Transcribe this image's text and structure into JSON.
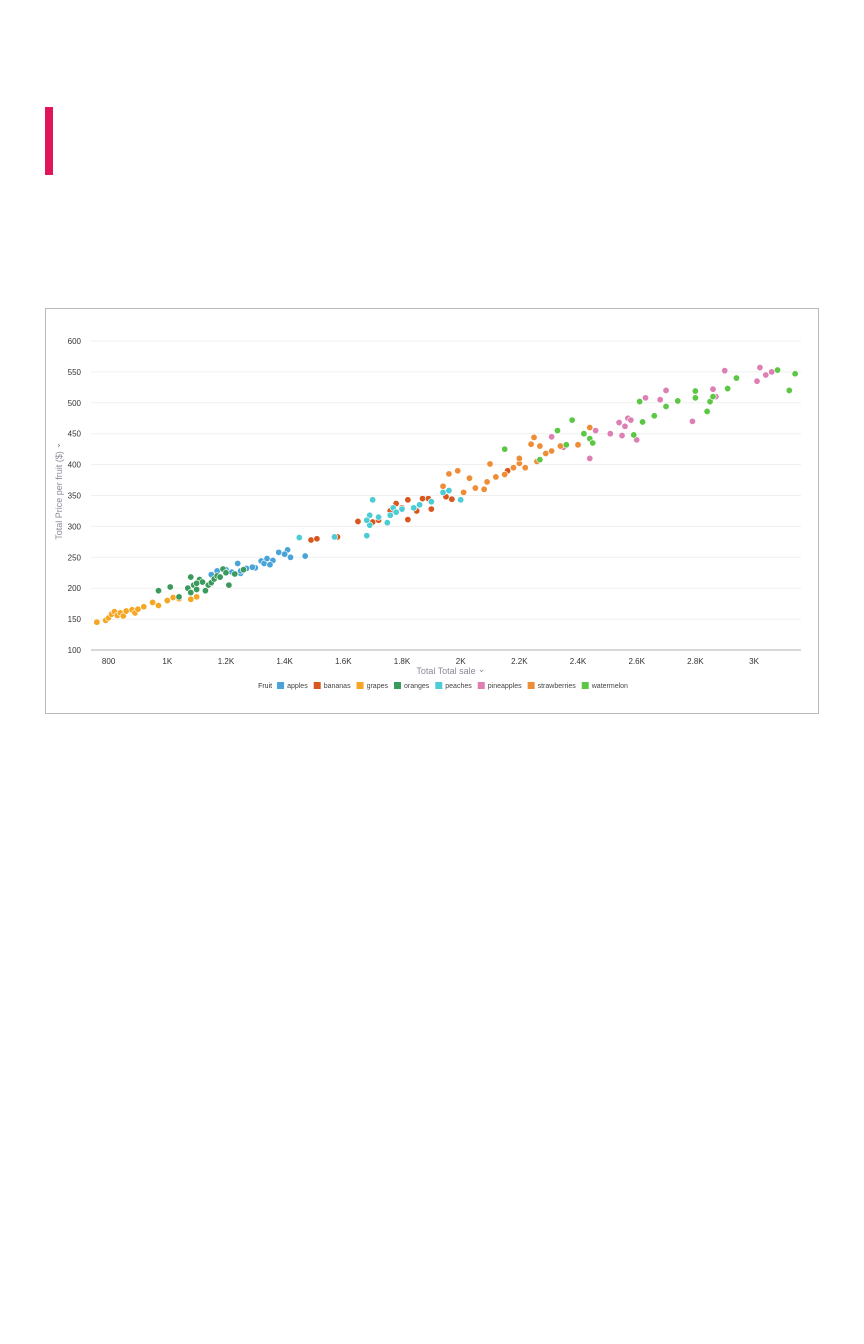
{
  "colors": {
    "accent": "#e0165b"
  },
  "chart_data": {
    "type": "scatter",
    "xlabel": "Total Total sale",
    "ylabel": "Total Price per fruit ($)",
    "xlim": [
      740,
      3160
    ],
    "ylim": [
      100,
      600
    ],
    "x_ticks": [
      {
        "value": 800,
        "label": "800"
      },
      {
        "value": 1000,
        "label": "1K"
      },
      {
        "value": 1200,
        "label": "1.2K"
      },
      {
        "value": 1400,
        "label": "1.4K"
      },
      {
        "value": 1600,
        "label": "1.6K"
      },
      {
        "value": 1800,
        "label": "1.8K"
      },
      {
        "value": 2000,
        "label": "2K"
      },
      {
        "value": 2200,
        "label": "2.2K"
      },
      {
        "value": 2400,
        "label": "2.4K"
      },
      {
        "value": 2600,
        "label": "2.6K"
      },
      {
        "value": 2800,
        "label": "2.8K"
      },
      {
        "value": 3000,
        "label": "3K"
      }
    ],
    "y_ticks": [
      {
        "value": 100,
        "label": "100"
      },
      {
        "value": 150,
        "label": "150"
      },
      {
        "value": 200,
        "label": "200"
      },
      {
        "value": 250,
        "label": "250"
      },
      {
        "value": 300,
        "label": "300"
      },
      {
        "value": 350,
        "label": "350"
      },
      {
        "value": 400,
        "label": "400"
      },
      {
        "value": 450,
        "label": "450"
      },
      {
        "value": 500,
        "label": "500"
      },
      {
        "value": 550,
        "label": "550"
      },
      {
        "value": 600,
        "label": "600"
      }
    ],
    "grid": true,
    "legend": {
      "title": "Fruit",
      "placement": "bottom-center"
    },
    "series": [
      {
        "name": "apples",
        "color": "#4aa3d8",
        "points": [
          [
            1150,
            222
          ],
          [
            1170,
            228
          ],
          [
            1200,
            230
          ],
          [
            1220,
            226
          ],
          [
            1240,
            240
          ],
          [
            1250,
            224
          ],
          [
            1270,
            232
          ],
          [
            1300,
            233
          ],
          [
            1320,
            244
          ],
          [
            1330,
            240
          ],
          [
            1340,
            248
          ],
          [
            1360,
            245
          ],
          [
            1380,
            258
          ],
          [
            1410,
            262
          ],
          [
            1420,
            250
          ],
          [
            1470,
            252
          ],
          [
            1250,
            228
          ],
          [
            1350,
            238
          ],
          [
            1290,
            234
          ],
          [
            1400,
            255
          ]
        ]
      },
      {
        "name": "bananas",
        "color": "#d9571e",
        "points": [
          [
            1490,
            278
          ],
          [
            1510,
            280
          ],
          [
            1580,
            283
          ],
          [
            1650,
            308
          ],
          [
            1700,
            307
          ],
          [
            1720,
            310
          ],
          [
            1780,
            337
          ],
          [
            1800,
            330
          ],
          [
            1820,
            343
          ],
          [
            1820,
            311
          ],
          [
            1850,
            325
          ],
          [
            1870,
            345
          ],
          [
            1890,
            345
          ],
          [
            1900,
            328
          ],
          [
            1950,
            348
          ],
          [
            1970,
            344
          ],
          [
            2160,
            390
          ],
          [
            1760,
            325
          ]
        ]
      },
      {
        "name": "grapes",
        "color": "#f5a623",
        "points": [
          [
            760,
            145
          ],
          [
            790,
            148
          ],
          [
            800,
            152
          ],
          [
            810,
            158
          ],
          [
            820,
            162
          ],
          [
            830,
            156
          ],
          [
            840,
            160
          ],
          [
            850,
            155
          ],
          [
            860,
            163
          ],
          [
            880,
            165
          ],
          [
            890,
            160
          ],
          [
            900,
            166
          ],
          [
            920,
            170
          ],
          [
            950,
            177
          ],
          [
            970,
            172
          ],
          [
            1000,
            180
          ],
          [
            1020,
            185
          ],
          [
            1040,
            183
          ],
          [
            1080,
            182
          ],
          [
            1100,
            186
          ]
        ]
      },
      {
        "name": "oranges",
        "color": "#3a9a5b",
        "points": [
          [
            970,
            196
          ],
          [
            1010,
            202
          ],
          [
            1040,
            186
          ],
          [
            1070,
            200
          ],
          [
            1080,
            218
          ],
          [
            1090,
            205
          ],
          [
            1100,
            198
          ],
          [
            1110,
            214
          ],
          [
            1120,
            210
          ],
          [
            1140,
            205
          ],
          [
            1150,
            209
          ],
          [
            1160,
            215
          ],
          [
            1170,
            220
          ],
          [
            1180,
            218
          ],
          [
            1190,
            231
          ],
          [
            1200,
            225
          ],
          [
            1210,
            205
          ],
          [
            1230,
            223
          ],
          [
            1260,
            230
          ],
          [
            1080,
            193
          ],
          [
            1100,
            208
          ],
          [
            1130,
            196
          ]
        ]
      },
      {
        "name": "peaches",
        "color": "#4ccdd6",
        "points": [
          [
            1450,
            282
          ],
          [
            1570,
            283
          ],
          [
            1680,
            285
          ],
          [
            1690,
            302
          ],
          [
            1690,
            318
          ],
          [
            1700,
            343
          ],
          [
            1720,
            315
          ],
          [
            1750,
            306
          ],
          [
            1760,
            318
          ],
          [
            1770,
            330
          ],
          [
            1800,
            328
          ],
          [
            1840,
            330
          ],
          [
            1860,
            335
          ],
          [
            1900,
            340
          ],
          [
            1940,
            355
          ],
          [
            1960,
            358
          ],
          [
            2000,
            343
          ],
          [
            1680,
            310
          ],
          [
            1780,
            323
          ]
        ]
      },
      {
        "name": "pineapples",
        "color": "#de7fb3",
        "points": [
          [
            2310,
            445
          ],
          [
            2350,
            428
          ],
          [
            2440,
            410
          ],
          [
            2460,
            455
          ],
          [
            2510,
            450
          ],
          [
            2550,
            447
          ],
          [
            2560,
            462
          ],
          [
            2570,
            475
          ],
          [
            2600,
            440
          ],
          [
            2630,
            508
          ],
          [
            2680,
            505
          ],
          [
            2700,
            520
          ],
          [
            2790,
            470
          ],
          [
            2860,
            522
          ],
          [
            2870,
            510
          ],
          [
            2900,
            552
          ],
          [
            3010,
            535
          ],
          [
            3020,
            557
          ],
          [
            3040,
            545
          ],
          [
            3060,
            550
          ],
          [
            2540,
            468
          ],
          [
            2580,
            472
          ]
        ]
      },
      {
        "name": "strawberries",
        "color": "#ef8d37",
        "points": [
          [
            1940,
            365
          ],
          [
            1960,
            385
          ],
          [
            1990,
            390
          ],
          [
            2010,
            355
          ],
          [
            2030,
            378
          ],
          [
            2050,
            362
          ],
          [
            2080,
            360
          ],
          [
            2090,
            372
          ],
          [
            2100,
            401
          ],
          [
            2120,
            380
          ],
          [
            2150,
            384
          ],
          [
            2180,
            395
          ],
          [
            2200,
            402
          ],
          [
            2220,
            395
          ],
          [
            2240,
            433
          ],
          [
            2250,
            444
          ],
          [
            2270,
            430
          ],
          [
            2290,
            418
          ],
          [
            2310,
            422
          ],
          [
            2340,
            430
          ],
          [
            2400,
            432
          ],
          [
            2440,
            460
          ],
          [
            2200,
            410
          ],
          [
            2260,
            405
          ]
        ]
      },
      {
        "name": "watermelon",
        "color": "#5cc744",
        "points": [
          [
            2150,
            425
          ],
          [
            2270,
            408
          ],
          [
            2330,
            455
          ],
          [
            2360,
            432
          ],
          [
            2380,
            472
          ],
          [
            2420,
            450
          ],
          [
            2440,
            442
          ],
          [
            2450,
            435
          ],
          [
            2590,
            448
          ],
          [
            2610,
            502
          ],
          [
            2620,
            469
          ],
          [
            2660,
            479
          ],
          [
            2700,
            494
          ],
          [
            2740,
            503
          ],
          [
            2800,
            508
          ],
          [
            2800,
            519
          ],
          [
            2840,
            486
          ],
          [
            2850,
            502
          ],
          [
            2860,
            510
          ],
          [
            2910,
            523
          ],
          [
            2940,
            540
          ],
          [
            3080,
            553
          ],
          [
            3120,
            520
          ],
          [
            3140,
            547
          ]
        ]
      }
    ]
  }
}
